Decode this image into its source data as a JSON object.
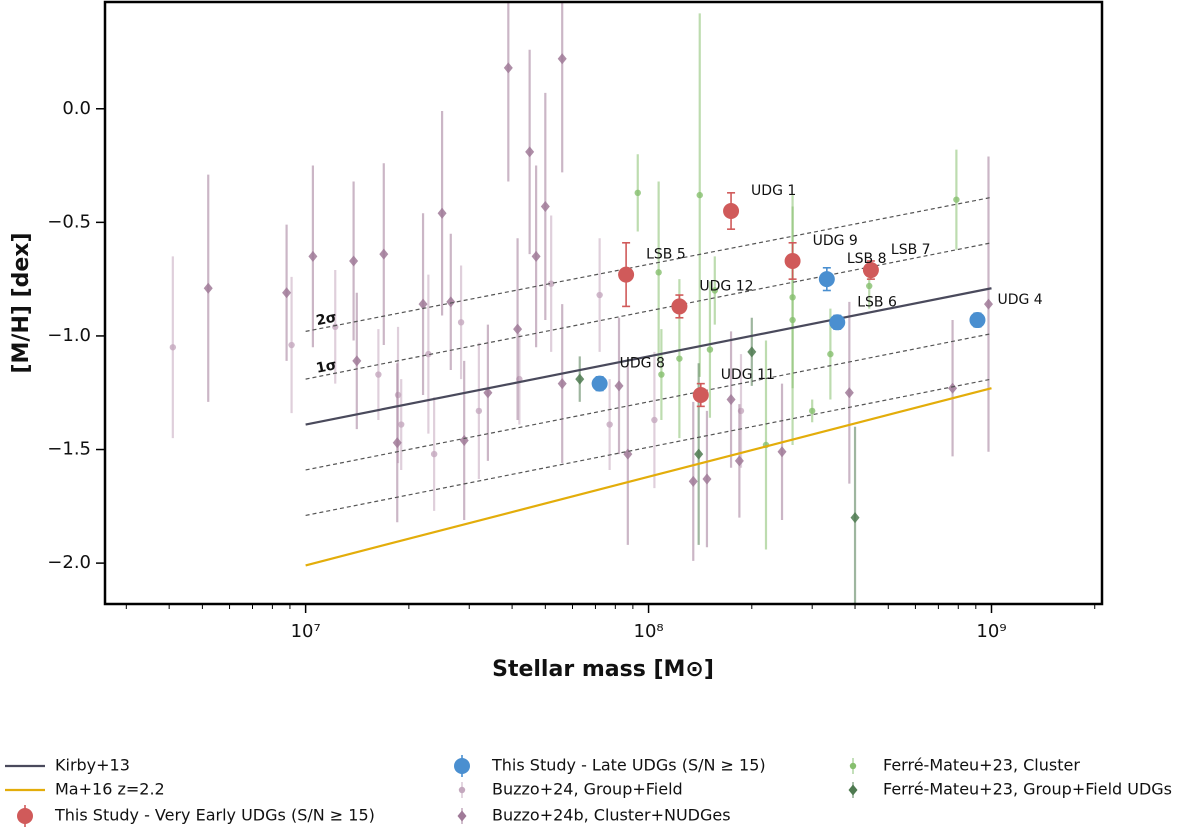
{
  "chart_data": {
    "type": "scatter",
    "xlabel": "Stellar mass [M⊙]",
    "ylabel": "[M/H] [dex]",
    "xlog": true,
    "xlim": [
      2600000,
      2100000000
    ],
    "ylim": [
      -2.18,
      0.47
    ],
    "xticks": [
      {
        "value": 10000000,
        "label": "10⁷"
      },
      {
        "value": 100000000,
        "label": "10⁸"
      },
      {
        "value": 1000000000,
        "label": "10⁹"
      }
    ],
    "xminorticks": [
      3000000,
      4000000,
      5000000,
      6000000,
      7000000,
      8000000,
      9000000,
      20000000,
      30000000,
      40000000,
      50000000,
      60000000,
      70000000,
      80000000,
      90000000,
      200000000,
      300000000,
      400000000,
      500000000,
      600000000,
      700000000,
      800000000,
      900000000,
      2000000000
    ],
    "yticks": [
      {
        "value": 0,
        "label": "0.0"
      },
      {
        "value": -0.5,
        "label": "−0.5"
      },
      {
        "value": -1,
        "label": "−1.0"
      },
      {
        "value": -1.5,
        "label": "−1.5"
      },
      {
        "value": -2,
        "label": "−2.0"
      }
    ],
    "dashed_lines": [
      {
        "label": "2σ",
        "x": [
          10000000,
          1000000000
        ],
        "values": [
          -0.98,
          -0.39
        ]
      },
      {
        "label": "1σ",
        "x": [
          10000000,
          1000000000
        ],
        "values": [
          -1.19,
          -0.59
        ]
      },
      {
        "x": [
          10000000,
          1000000000
        ],
        "values": [
          -1.59,
          -0.99
        ]
      },
      {
        "x": [
          10000000,
          1000000000
        ],
        "values": [
          -1.79,
          -1.19
        ]
      }
    ],
    "series": [
      {
        "name": "Kirby+13",
        "kind": "line",
        "color": "#4a4a5c",
        "x": [
          10000000,
          1000000000
        ],
        "values": [
          -1.39,
          -0.79
        ]
      },
      {
        "name": "Ma+16 z=2.2",
        "kind": "line",
        "color": "#e3ad0a",
        "x": [
          10000000,
          1000000000
        ],
        "values": [
          -2.01,
          -1.23
        ]
      },
      {
        "name": "This Study - Very Early UDGs (S/N ≥ 15)",
        "kind": "scatter",
        "marker": "circle",
        "color": "#d05a5a",
        "x": [
          86000000,
          123000000,
          174000000,
          263000000,
          445000000,
          142000000
        ],
        "values": [
          -0.73,
          -0.87,
          -0.45,
          -0.67,
          -0.71,
          -1.26
        ],
        "errors": [
          0.14,
          0.05,
          0.08,
          0.08,
          0.04,
          0.05
        ],
        "labels": [
          "LSB 5",
          "UDG 12",
          "UDG 1",
          "UDG 9",
          "LSB 7",
          "UDG 11"
        ]
      },
      {
        "name": "This Study - Late UDGs (S/N ≥ 15)",
        "kind": "scatter",
        "marker": "circle",
        "color": "#4a8fd0",
        "x": [
          72000000,
          331000000,
          355000000,
          910000000
        ],
        "values": [
          -1.21,
          -0.75,
          -0.94,
          -0.93
        ],
        "errors": [
          0.03,
          0.05,
          0.03,
          0.03
        ],
        "labels": [
          "UDG 8",
          "LSB 8",
          "LSB 6",
          "UDG 4"
        ]
      },
      {
        "name": "Buzzo+24, Group+Field",
        "kind": "scatter",
        "marker": "dot",
        "color": "#c4a8be",
        "x": [
          4100000,
          9100000,
          12200000,
          16300000,
          18600000,
          22800000,
          28400000,
          32000000,
          42000000,
          52000000,
          72000000,
          77000000,
          104000000,
          186000000,
          19000000,
          23700000
        ],
        "values": [
          -1.05,
          -1.04,
          -0.96,
          -1.17,
          -1.26,
          -1.08,
          -0.94,
          -1.33,
          -1.19,
          -0.77,
          -0.82,
          -1.39,
          -1.37,
          -1.33,
          -1.39,
          -1.52
        ],
        "errors": [
          0.4,
          0.3,
          0.25,
          0.2,
          0.3,
          0.35,
          0.25,
          0.3,
          0.2,
          0.3,
          0.25,
          0.2,
          0.3,
          0.25,
          0.2,
          0.25
        ]
      },
      {
        "name": "Buzzo+24b, Cluster+NUDGes",
        "kind": "scatter",
        "marker": "diamond",
        "color": "#a07a98",
        "x": [
          5200000,
          8800000,
          10500000,
          13800000,
          16900000,
          14100000,
          18500000,
          22000000,
          25000000,
          26500000,
          29000000,
          34000000,
          39000000,
          41500000,
          45000000,
          50000000,
          47000000,
          56000000,
          56000000,
          82000000,
          87000000,
          135000000,
          148000000,
          184000000,
          245000000,
          385000000,
          770000000,
          980000000,
          174000000
        ],
        "values": [
          -0.79,
          -0.81,
          -0.65,
          -0.67,
          -0.64,
          -1.11,
          -1.47,
          -0.86,
          -0.46,
          -0.85,
          -1.46,
          -1.25,
          0.18,
          -0.97,
          -0.19,
          -0.43,
          -0.65,
          0.22,
          -1.21,
          -1.22,
          -1.52,
          -1.64,
          -1.63,
          -1.55,
          -1.51,
          -1.25,
          -1.23,
          -0.86,
          -1.28
        ],
        "errors": [
          0.5,
          0.3,
          0.4,
          0.35,
          0.4,
          0.3,
          0.35,
          0.4,
          0.45,
          0.3,
          0.35,
          0.3,
          0.5,
          0.4,
          0.45,
          0.5,
          0.4,
          0.5,
          0.35,
          0.3,
          0.4,
          0.35,
          0.3,
          0.25,
          0.3,
          0.4,
          0.3,
          0.65,
          0.3
        ]
      },
      {
        "name": "Ferré-Mateu+23, Cluster",
        "kind": "scatter",
        "marker": "dot",
        "color": "#86bf6e",
        "x": [
          93000000,
          107000000,
          141000000,
          156000000,
          263000000,
          263000000,
          339000000,
          300000000,
          440000000,
          790000000,
          220000000,
          151000000,
          123000000,
          109000000
        ],
        "values": [
          -0.37,
          -0.72,
          -0.38,
          -0.8,
          -0.83,
          -0.93,
          -1.08,
          -1.33,
          -0.78,
          -0.4,
          -1.48,
          -1.06,
          -1.1,
          -1.17
        ],
        "errors": [
          0.17,
          0.4,
          0.8,
          0.15,
          0.4,
          0.55,
          0.2,
          0.05,
          0.1,
          0.22,
          0.46,
          0.3,
          0.35,
          0.2
        ]
      },
      {
        "name": "Ferré-Mateu+23, Group+Field UDGs",
        "kind": "scatter",
        "marker": "diamond",
        "color": "#4e7a50",
        "x": [
          63000000,
          140000000,
          200000000,
          400000000
        ],
        "values": [
          -1.19,
          -1.52,
          -1.07,
          -1.8
        ],
        "errors": [
          0.1,
          0.4,
          0.15,
          0.4
        ]
      }
    ]
  }
}
